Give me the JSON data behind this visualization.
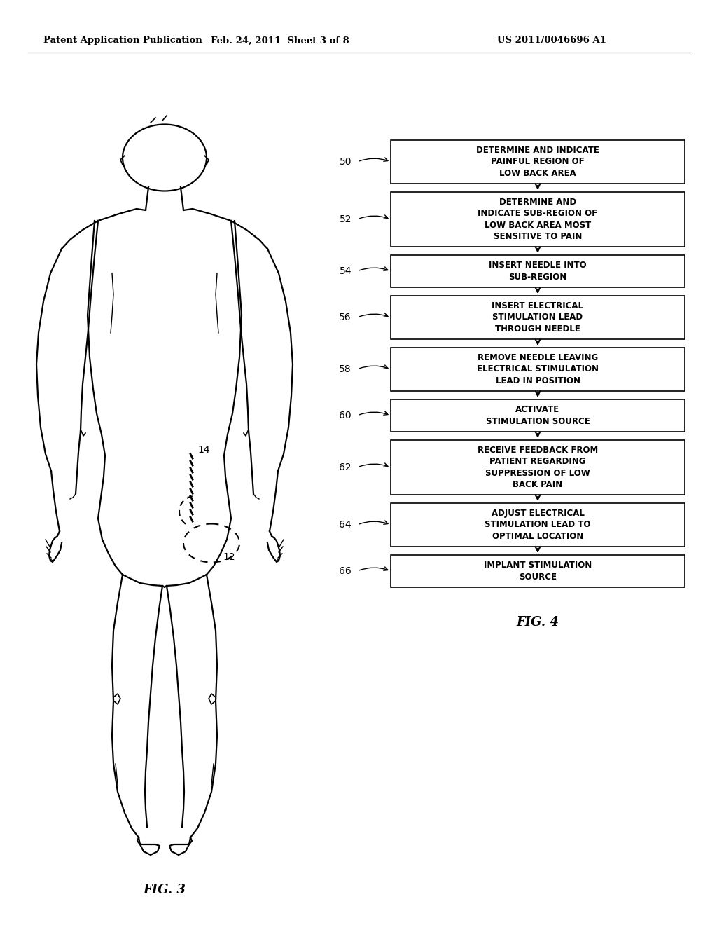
{
  "background_color": "#ffffff",
  "header_left": "Patent Application Publication",
  "header_mid": "Feb. 24, 2011  Sheet 3 of 8",
  "header_right": "US 2011/0046696 A1",
  "fig3_label": "FIG. 3",
  "fig4_label": "FIG. 4",
  "flowchart": {
    "steps": [
      {
        "id": "50",
        "label": "DETERMINE AND INDICATE\nPAINFUL REGION OF\nLOW BACK AREA"
      },
      {
        "id": "52",
        "label": "DETERMINE AND\nINDICATE SUB-REGION OF\nLOW BACK AREA MOST\nSENSITIVE TO PAIN"
      },
      {
        "id": "54",
        "label": "INSERT NEEDLE INTO\nSUB-REGION"
      },
      {
        "id": "56",
        "label": "INSERT ELECTRICAL\nSTIMULATION LEAD\nTHROUGH NEEDLE"
      },
      {
        "id": "58",
        "label": "REMOVE NEEDLE LEAVING\nELECTRICAL STIMULATION\nLEAD IN POSITION"
      },
      {
        "id": "60",
        "label": "ACTIVATE\nSTIMULATION SOURCE"
      },
      {
        "id": "62",
        "label": "RECEIVE FEEDBACK FROM\nPATIENT REGARDING\nSUPPRESSION OF LOW\nBACK PAIN"
      },
      {
        "id": "64",
        "label": "ADJUST ELECTRICAL\nSTIMULATION LEAD TO\nOPTIMAL LOCATION"
      },
      {
        "id": "66",
        "label": "IMPLANT STIMULATION\nSOURCE"
      }
    ]
  }
}
